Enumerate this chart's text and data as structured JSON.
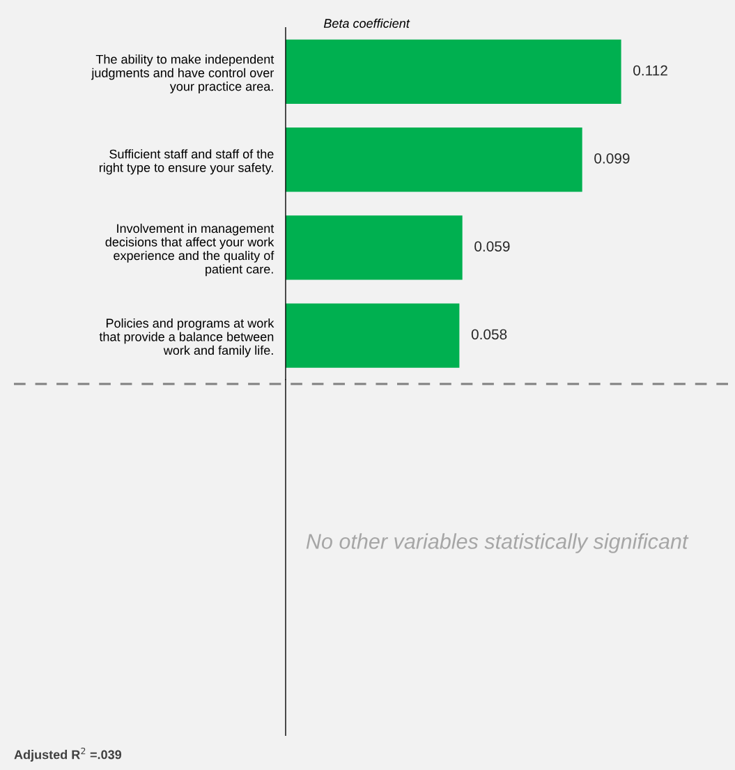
{
  "chart_data": {
    "type": "bar",
    "orientation": "horizontal",
    "relative": false,
    "xlabel": "Beta coefficient",
    "categories": [
      "The ability to make independent\njudgments and have control over\nyour practice area.",
      "Sufficient staff and staff of the\nright type to ensure your safety.",
      "Involvement in management\ndecisions that affect your work\nexperience and the quality of\npatient care.",
      "Policies and programs at work\nthat provide a balance between\nwork and family life."
    ],
    "values": [
      0.112,
      0.099,
      0.059,
      0.058
    ],
    "color": "#00b050",
    "data_labels": true,
    "xlim": [
      0,
      0.15
    ],
    "tick_labels": "y",
    "grid": false,
    "legend": false,
    "annotations": [
      "No other variables statistically significant",
      "Adjusted R$^{2}$ =.039"
    ]
  }
}
